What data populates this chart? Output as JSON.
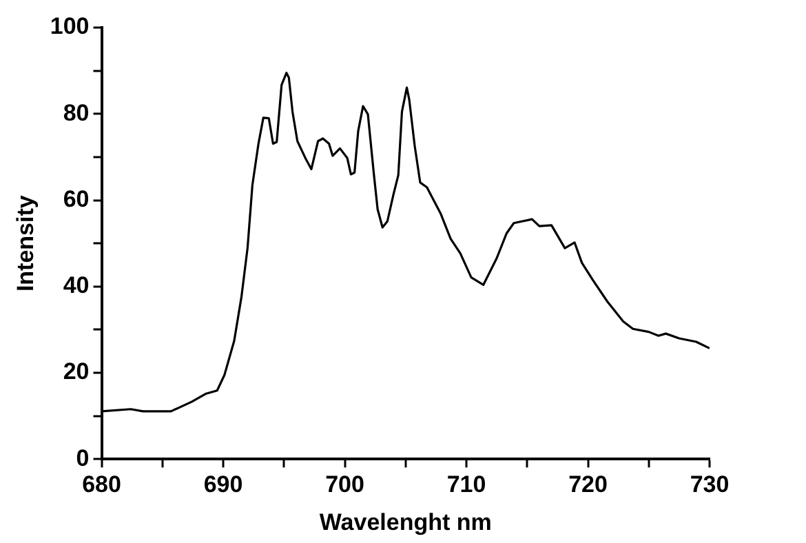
{
  "chart_data": {
    "type": "line",
    "xlabel": "Wavelenght nm",
    "ylabel": "Intensity",
    "xlim": [
      680,
      730
    ],
    "ylim": [
      0,
      100
    ],
    "xticks": [
      680,
      {
        "value": 685,
        "label": null
      },
      690,
      {
        "value": 695,
        "label": null
      },
      700,
      {
        "value": 705,
        "label": null
      },
      710,
      {
        "value": 715,
        "label": null
      },
      720,
      {
        "value": 725,
        "label": null
      },
      730
    ],
    "yticks": [
      0,
      {
        "value": 10,
        "label": null
      },
      20,
      {
        "value": 30,
        "label": null
      },
      40,
      {
        "value": 50,
        "label": null
      },
      60,
      {
        "value": 70,
        "label": null
      },
      80,
      {
        "value": 90,
        "label": null
      },
      100
    ],
    "grid": false,
    "legend": false,
    "marker": "none",
    "line_style": "solid",
    "series": [
      {
        "color": "#000000",
        "x": [
          680,
          682.4,
          683.4,
          685.7,
          687.4,
          688.6,
          689.5,
          690.1,
          690.9,
          691.5,
          692,
          692.4,
          692.9,
          693.3,
          693.75,
          694.1,
          694.4,
          694.8,
          695.2,
          695.4,
          695.7,
          696.1,
          696.75,
          697.25,
          697.8,
          698.2,
          698.7,
          699,
          699.6,
          700.2,
          700.5,
          700.8,
          701.1,
          701.5,
          701.9,
          702.4,
          702.7,
          703.1,
          703.5,
          704,
          704.4,
          704.7,
          705.1,
          705.3,
          705.75,
          706.2,
          706.75,
          707.9,
          708.7,
          709.5,
          710.4,
          711.4,
          712.5,
          713.3,
          713.9,
          715.4,
          716,
          717,
          718.1,
          718.9,
          719.5,
          720.4,
          721.6,
          722.9,
          723.7,
          725,
          725.8,
          726.4,
          727.5,
          728.9,
          730
        ],
        "values": [
          11.1,
          11.6,
          11.1,
          11.1,
          13.3,
          15.2,
          15.9,
          19.5,
          27.4,
          37.6,
          48.9,
          63.5,
          73.1,
          79.1,
          79,
          73.1,
          73.5,
          86.7,
          89.5,
          88.4,
          80.5,
          73.7,
          69.8,
          67.2,
          73.7,
          74.3,
          73.1,
          70.3,
          72,
          69.8,
          66,
          66.4,
          76,
          81.8,
          79.9,
          65.8,
          57.9,
          53.7,
          55.1,
          61.3,
          65.8,
          80.5,
          86.1,
          83.3,
          72.6,
          64.1,
          63,
          56.8,
          51.1,
          47.7,
          42.1,
          40.4,
          46.6,
          52.3,
          54.7,
          55.6,
          54,
          54.2,
          48.9,
          50.2,
          45.5,
          41.5,
          36.5,
          31.9,
          30.2,
          29.5,
          28.6,
          29.1,
          28,
          27.2,
          25.7
        ]
      }
    ]
  }
}
